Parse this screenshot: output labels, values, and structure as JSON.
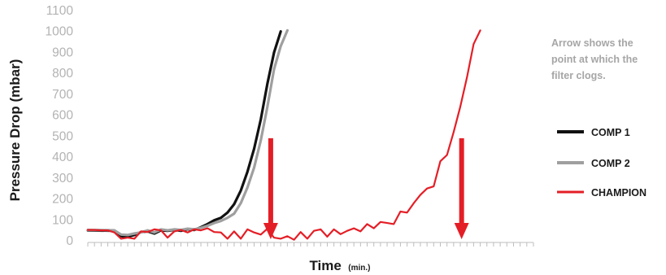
{
  "chart_data": {
    "type": "line",
    "xlabel": "Time",
    "xlabel_unit": "(min.)",
    "ylabel": "Pressure Drop (mbar)",
    "ylim": [
      0,
      1100
    ],
    "yticks": [
      0,
      100,
      200,
      300,
      400,
      500,
      600,
      700,
      800,
      900,
      1000,
      1100
    ],
    "x_tick_count": 68,
    "legend_position": "right",
    "annotation": [
      "Arrow shows the",
      "point at which the",
      "filter clogs."
    ],
    "series": [
      {
        "name": "COMP 1",
        "color": "#111111",
        "points": [
          [
            0,
            50
          ],
          [
            4,
            48
          ],
          [
            5,
            22
          ],
          [
            6,
            20
          ],
          [
            7,
            28
          ],
          [
            8,
            42
          ],
          [
            9,
            45
          ],
          [
            10,
            35
          ],
          [
            11,
            50
          ],
          [
            12,
            48
          ],
          [
            13,
            52
          ],
          [
            14,
            48
          ],
          [
            15,
            56
          ],
          [
            16,
            52
          ],
          [
            17,
            65
          ],
          [
            18,
            80
          ],
          [
            19,
            98
          ],
          [
            20,
            110
          ],
          [
            21,
            135
          ],
          [
            22,
            175
          ],
          [
            23,
            240
          ],
          [
            24,
            330
          ],
          [
            25,
            440
          ],
          [
            26,
            580
          ],
          [
            27,
            750
          ],
          [
            28,
            900
          ],
          [
            29,
            1000
          ]
        ]
      },
      {
        "name": "COMP 2",
        "color": "#9f9f9f",
        "points": [
          [
            0,
            52
          ],
          [
            4,
            50
          ],
          [
            5,
            30
          ],
          [
            6,
            28
          ],
          [
            7,
            35
          ],
          [
            8,
            40
          ],
          [
            9,
            50
          ],
          [
            10,
            40
          ],
          [
            11,
            55
          ],
          [
            12,
            50
          ],
          [
            13,
            55
          ],
          [
            14,
            52
          ],
          [
            15,
            58
          ],
          [
            16,
            55
          ],
          [
            17,
            62
          ],
          [
            18,
            72
          ],
          [
            19,
            85
          ],
          [
            20,
            95
          ],
          [
            21,
            110
          ],
          [
            22,
            130
          ],
          [
            23,
            180
          ],
          [
            24,
            255
          ],
          [
            25,
            350
          ],
          [
            26,
            480
          ],
          [
            27,
            640
          ],
          [
            28,
            820
          ],
          [
            29,
            930
          ],
          [
            30,
            1005
          ]
        ]
      },
      {
        "name": "CHAMPION",
        "color": "#e41e26",
        "points": [
          [
            0,
            52
          ],
          [
            1,
            52
          ],
          [
            2,
            50
          ],
          [
            3,
            50
          ],
          [
            4,
            40
          ],
          [
            5,
            10
          ],
          [
            6,
            15
          ],
          [
            7,
            10
          ],
          [
            8,
            45
          ],
          [
            9,
            42
          ],
          [
            10,
            55
          ],
          [
            11,
            50
          ],
          [
            12,
            15
          ],
          [
            13,
            45
          ],
          [
            14,
            52
          ],
          [
            15,
            40
          ],
          [
            16,
            55
          ],
          [
            17,
            50
          ],
          [
            18,
            60
          ],
          [
            19,
            42
          ],
          [
            20,
            40
          ],
          [
            21,
            10
          ],
          [
            22,
            45
          ],
          [
            23,
            10
          ],
          [
            24,
            55
          ],
          [
            25,
            40
          ],
          [
            26,
            30
          ],
          [
            27,
            58
          ],
          [
            28,
            15
          ],
          [
            29,
            10
          ],
          [
            30,
            22
          ],
          [
            31,
            5
          ],
          [
            32,
            42
          ],
          [
            33,
            10
          ],
          [
            34,
            48
          ],
          [
            35,
            55
          ],
          [
            36,
            20
          ],
          [
            37,
            55
          ],
          [
            38,
            32
          ],
          [
            39,
            48
          ],
          [
            40,
            60
          ],
          [
            41,
            45
          ],
          [
            42,
            80
          ],
          [
            43,
            60
          ],
          [
            44,
            90
          ],
          [
            45,
            85
          ],
          [
            46,
            80
          ],
          [
            47,
            140
          ],
          [
            48,
            135
          ],
          [
            49,
            180
          ],
          [
            50,
            220
          ],
          [
            51,
            250
          ],
          [
            52,
            260
          ],
          [
            53,
            380
          ],
          [
            54,
            410
          ],
          [
            55,
            520
          ],
          [
            56,
            640
          ],
          [
            57,
            780
          ],
          [
            58,
            940
          ],
          [
            59,
            1005
          ]
        ]
      }
    ],
    "arrows": [
      {
        "x": 27.5,
        "y_from": 490,
        "y_to": 0,
        "color": "#e41e26"
      },
      {
        "x": 56.2,
        "y_from": 490,
        "y_to": 0,
        "color": "#e41e26"
      }
    ]
  }
}
